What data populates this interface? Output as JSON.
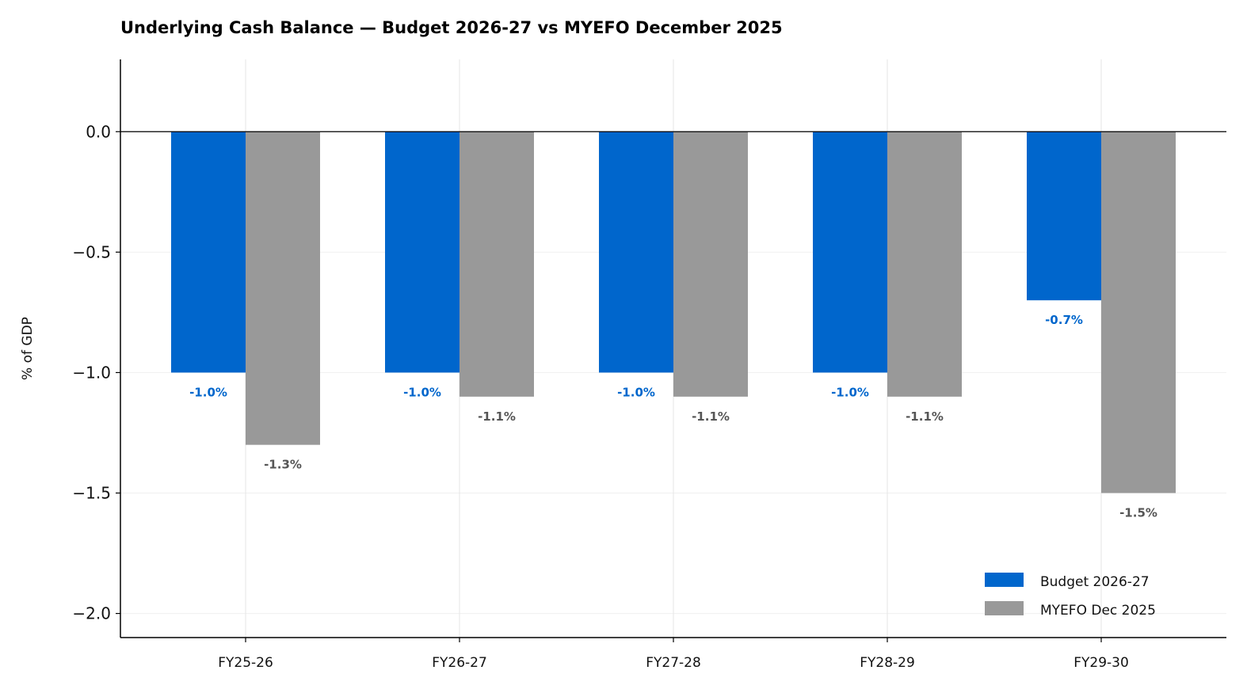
{
  "chart_data": {
    "type": "bar",
    "title": "Underlying Cash Balance — Budget 2026-27 vs MYEFO December 2025",
    "xlabel": "",
    "ylabel": "% of GDP",
    "categories": [
      "FY25-26",
      "FY26-27",
      "FY27-28",
      "FY28-29",
      "FY29-30"
    ],
    "series": [
      {
        "name": "Budget 2026-27",
        "values": [
          -1.0,
          -1.0,
          -1.0,
          -1.0,
          -0.7
        ],
        "labels": [
          "-1.0%",
          "-1.0%",
          "-1.0%",
          "-1.0%",
          "-0.7%"
        ],
        "color": "#0066CC",
        "label_color": "#0066CC"
      },
      {
        "name": "MYEFO Dec 2025",
        "values": [
          -1.3,
          -1.1,
          -1.1,
          -1.1,
          -1.5
        ],
        "labels": [
          "-1.3%",
          "-1.1%",
          "-1.1%",
          "-1.1%",
          "-1.5%"
        ],
        "color": "#999999",
        "label_color": "#555555"
      }
    ],
    "ylim": [
      -2.1,
      0.3
    ],
    "yticks": [
      0.0,
      -0.5,
      -1.0,
      -1.5,
      -2.0
    ],
    "ytick_labels": [
      "0.0",
      "−0.5",
      "−1.0",
      "−1.5",
      "−2.0"
    ],
    "grid": true,
    "zero_line": true,
    "legend_position": "lower-right"
  }
}
